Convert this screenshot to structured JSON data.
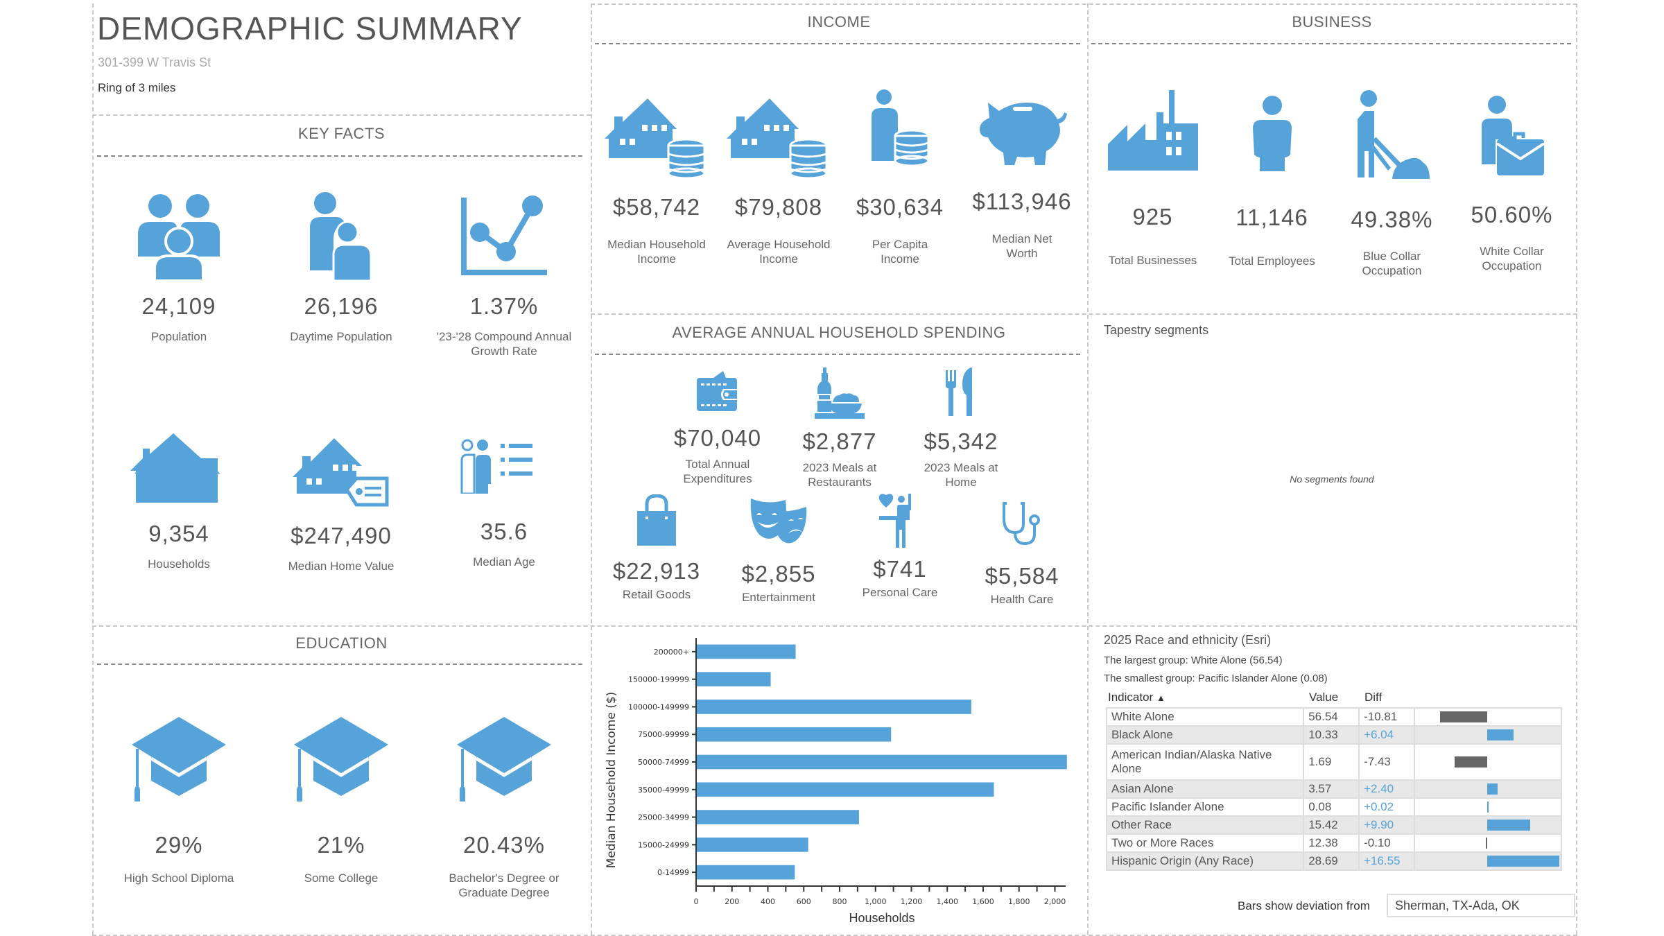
{
  "header": {
    "title": "DEMOGRAPHIC SUMMARY",
    "address": "301-399 W Travis St",
    "ring": "Ring of 3 miles"
  },
  "key_facts": {
    "title": "KEY FACTS",
    "items": [
      {
        "icon": "people-group-icon",
        "value": "24,109",
        "label": "Population"
      },
      {
        "icon": "daytime-people-icon",
        "value": "26,196",
        "label": "Daytime Population"
      },
      {
        "icon": "growth-chart-icon",
        "value": "1.37%",
        "label": "'23-'28 Compound Annual Growth Rate"
      },
      {
        "icon": "house-icon",
        "value": "9,354",
        "label": "Households"
      },
      {
        "icon": "house-price-tag-icon",
        "value": "$247,490",
        "label": "Median Home Value"
      },
      {
        "icon": "age-list-icon",
        "value": "35.6",
        "label": "Median Age"
      }
    ]
  },
  "income": {
    "title": "INCOME",
    "items": [
      {
        "icon": "house-coins-icon",
        "value": "$58,742",
        "label": "Median Household Income"
      },
      {
        "icon": "house-coins-icon",
        "value": "$79,808",
        "label": "Average Household Income"
      },
      {
        "icon": "person-coins-icon",
        "value": "$30,634",
        "label": "Per Capita Income"
      },
      {
        "icon": "piggy-bank-icon",
        "value": "$113,946",
        "label": "Median Net Worth"
      }
    ]
  },
  "business": {
    "title": "BUSINESS",
    "items": [
      {
        "icon": "factory-icon",
        "value": "925",
        "label": "Total Businesses"
      },
      {
        "icon": "person-icon",
        "value": "11,146",
        "label": "Total Employees"
      },
      {
        "icon": "worker-icon",
        "value": "49.38%",
        "label": "Blue Collar Occupation"
      },
      {
        "icon": "briefcase-person-icon",
        "value": "50.60%",
        "label": "White Collar Occupation"
      }
    ]
  },
  "spending": {
    "title": "AVERAGE ANNUAL HOUSEHOLD SPENDING",
    "items": [
      {
        "icon": "wallet-icon",
        "value": "$70,040",
        "label": "Total Annual Expenditures"
      },
      {
        "icon": "restaurant-meal-icon",
        "value": "$2,877",
        "label": "2023 Meals at Restaurants"
      },
      {
        "icon": "fork-knife-icon",
        "value": "$5,342",
        "label": "2023 Meals at Home"
      },
      {
        "icon": "shopping-bag-icon",
        "value": "$22,913",
        "label": "Retail Goods"
      },
      {
        "icon": "theater-masks-icon",
        "value": "$2,855",
        "label": "Entertainment"
      },
      {
        "icon": "personal-care-icon",
        "value": "$741",
        "label": "Personal Care"
      },
      {
        "icon": "stethoscope-icon",
        "value": "$5,584",
        "label": "Health Care"
      }
    ]
  },
  "tapestry": {
    "title": "Tapestry segments",
    "empty_message": "No segments found"
  },
  "education": {
    "title": "EDUCATION",
    "items": [
      {
        "icon": "graduation-cap-icon",
        "value": "29%",
        "label": "High School Diploma"
      },
      {
        "icon": "graduation-cap-icon",
        "value": "21%",
        "label": "Some College"
      },
      {
        "icon": "graduation-cap-icon",
        "value": "20.43%",
        "label": "Bachelor's Degree or Graduate Degree"
      }
    ]
  },
  "race": {
    "title": "2025 Race and ethnicity (Esri)",
    "largest": "The largest group: White Alone (56.54)",
    "smallest": "The smallest group: Pacific Islander Alone (0.08)",
    "columns": {
      "indicator": "Indicator",
      "sort_glyph": "▲",
      "value": "Value",
      "diff": "Diff"
    },
    "rows": [
      {
        "indicator": "White Alone",
        "value": "56.54",
        "diff": "-10.81",
        "diff_num": -10.81
      },
      {
        "indicator": "Black Alone",
        "value": "10.33",
        "diff": "+6.04",
        "diff_num": 6.04
      },
      {
        "indicator": "American Indian/Alaska Native Alone",
        "value": "1.69",
        "diff": "-7.43",
        "diff_num": -7.43
      },
      {
        "indicator": "Asian Alone",
        "value": "3.57",
        "diff": "+2.40",
        "diff_num": 2.4
      },
      {
        "indicator": "Pacific Islander Alone",
        "value": "0.08",
        "diff": "+0.02",
        "diff_num": 0.02
      },
      {
        "indicator": "Other Race",
        "value": "15.42",
        "diff": "+9.90",
        "diff_num": 9.9
      },
      {
        "indicator": "Two or More Races",
        "value": "12.38",
        "diff": "-0.10",
        "diff_num": -0.1
      },
      {
        "indicator": "Hispanic Origin (Any Race)",
        "value": "28.69",
        "diff": "+16.55",
        "diff_num": 16.55
      }
    ],
    "deviation_label": "Bars show deviation from",
    "deviation_value": "Sherman, TX-Ada, OK",
    "colors": {
      "positive": "#56a3d9",
      "negative": "#666666"
    }
  },
  "colors": {
    "accent": "#56a3d9",
    "text": "#555555",
    "border": "#c8c8c8"
  },
  "chart_data": {
    "type": "bar",
    "orientation": "horizontal",
    "title": "",
    "xlabel": "Households",
    "ylabel": "Median Household Income ($)",
    "categories": [
      "200000+",
      "150000-199999",
      "100000-149999",
      "75000-99999",
      "50000-74999",
      "35000-49999",
      "25000-34999",
      "15000-24999",
      "0-14999"
    ],
    "values": [
      551,
      412,
      1530,
      1083,
      2063,
      1656,
      904,
      621,
      546
    ],
    "xlim": [
      0,
      2060
    ],
    "xticks": [
      0,
      200,
      400,
      600,
      800,
      1000,
      1200,
      1400,
      1600,
      1800,
      2000
    ],
    "xtick_labels": [
      "0",
      "200",
      "400",
      "600",
      "800",
      "1,000",
      "1,200",
      "1,400",
      "1,600",
      "1,800",
      "2,000"
    ],
    "grid": false,
    "color": "#56a3d9"
  }
}
